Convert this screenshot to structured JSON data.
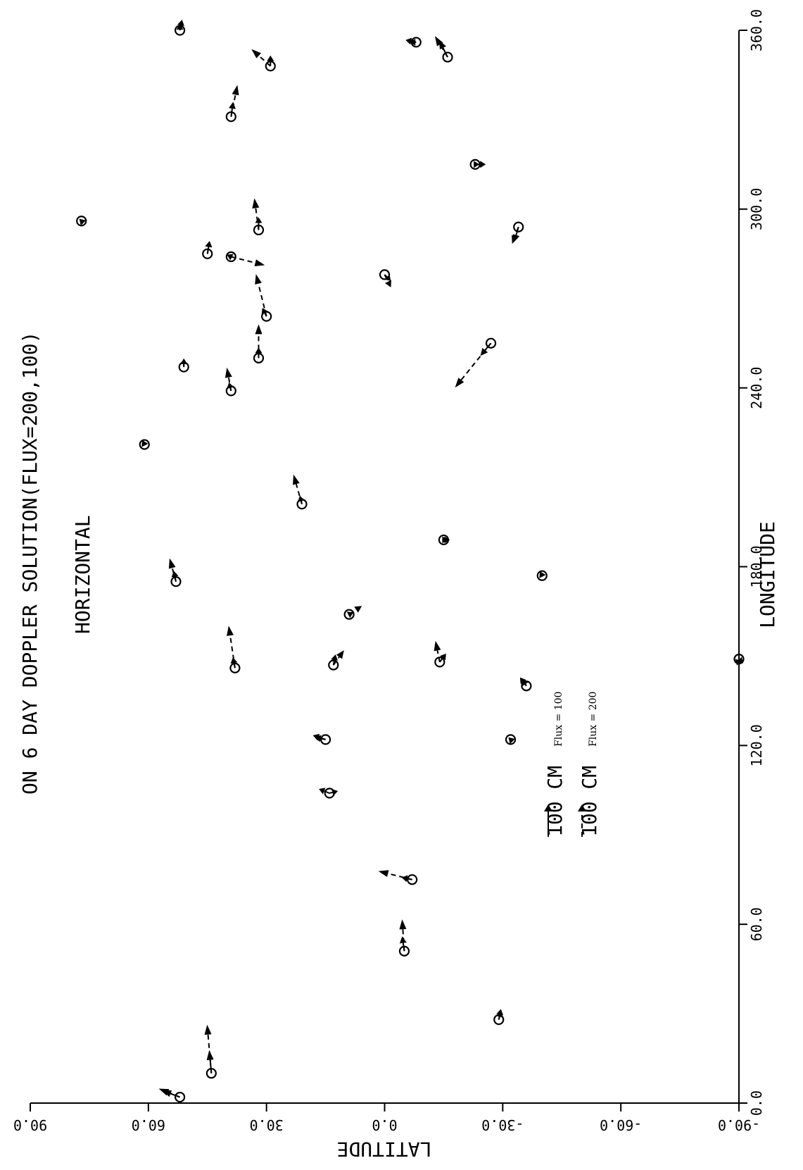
{
  "chart_data": {
    "type": "scatter",
    "title": "ON 6 DAY DOPPLER SOLUTION(FLUX=200,100)",
    "subtitle": "HORIZONTAL",
    "xlabel": "LONGITUDE",
    "ylabel": "LATITUDE",
    "xlim": [
      0,
      360
    ],
    "ylim": [
      -90,
      90
    ],
    "x_ticks": [
      "0.0",
      "60.0",
      "120.0",
      "180.0",
      "240.0",
      "300.0",
      "360.0"
    ],
    "y_ticks": [
      "-90.0",
      "-60.0",
      "-30.0",
      "0.0",
      "30.0",
      "60.0",
      "90.0"
    ],
    "legend": [
      {
        "text": "100 CM",
        "subtext": "Flux = 100",
        "style": "solid"
      },
      {
        "text": "100 CM",
        "subtext": "Flux = 200",
        "style": "dashed"
      }
    ],
    "stations": [
      {
        "lon": 2,
        "lat": 52,
        "v100": [
          8,
          3
        ],
        "v200": [
          10,
          4
        ]
      },
      {
        "lon": 10,
        "lat": 44,
        "v100": [
          1,
          11
        ],
        "v200": [
          2,
          23
        ]
      },
      {
        "lon": 28,
        "lat": -29,
        "v100": [
          -1,
          4
        ],
        "v200": [
          -1,
          5
        ]
      },
      {
        "lon": 51,
        "lat": -5,
        "v100": [
          1,
          7
        ],
        "v200": [
          1,
          15
        ]
      },
      {
        "lon": 75,
        "lat": -7,
        "v100": [
          5,
          1
        ],
        "v200": [
          16,
          4
        ]
      },
      {
        "lon": 104,
        "lat": 14,
        "v100": [
          5,
          2
        ],
        "v200": [
          -4,
          1
        ]
      },
      {
        "lon": 122,
        "lat": 15,
        "v100": [
          5,
          1
        ],
        "v200": [
          6,
          2
        ]
      },
      {
        "lon": 122,
        "lat": -32,
        "v100": [
          1,
          1
        ],
        "v200": [
          1,
          1
        ]
      },
      {
        "lon": 140,
        "lat": -36,
        "v100": [
          2,
          3
        ],
        "v200": [
          3,
          4
        ]
      },
      {
        "lon": 146,
        "lat": 38,
        "v100": [
          1,
          5
        ],
        "v200": [
          3,
          20
        ]
      },
      {
        "lon": 147,
        "lat": 13,
        "v100": [
          -1,
          5
        ],
        "v200": [
          -5,
          7
        ]
      },
      {
        "lon": 148,
        "lat": -14,
        "v100": [
          -3,
          4
        ],
        "v200": [
          2,
          10
        ]
      },
      {
        "lon": 149,
        "lat": -90,
        "v100": [
          -2,
          -2
        ],
        "v200": [
          1,
          -3
        ]
      },
      {
        "lon": 164,
        "lat": 9,
        "v100": [
          -2,
          1
        ],
        "v200": [
          -6,
          4
        ]
      },
      {
        "lon": 175,
        "lat": 53,
        "v100": [
          1,
          5
        ],
        "v200": [
          3,
          11
        ]
      },
      {
        "lon": 177,
        "lat": -40,
        "v100": [
          1,
          2
        ],
        "v200": [
          1,
          2
        ]
      },
      {
        "lon": 189,
        "lat": -15,
        "v100": [
          -2,
          0
        ],
        "v200": [
          -3,
          0
        ]
      },
      {
        "lon": 201,
        "lat": 21,
        "v100": [
          1,
          4
        ],
        "v200": [
          4,
          14
        ]
      },
      {
        "lon": 221,
        "lat": 61,
        "v100": [
          1,
          2
        ],
        "v200": [
          1,
          2
        ]
      },
      {
        "lon": 239,
        "lat": 39,
        "v100": [
          1,
          4
        ],
        "v200": [
          2,
          11
        ]
      },
      {
        "lon": 247,
        "lat": 51,
        "v100": [
          0,
          4
        ],
        "v200": [
          0,
          4
        ]
      },
      {
        "lon": 250,
        "lat": 32,
        "v100": [
          0,
          5
        ],
        "v200": [
          0,
          16
        ]
      },
      {
        "lon": 255,
        "lat": -27,
        "v100": [
          5,
          -6
        ],
        "v200": [
          17,
          -21
        ]
      },
      {
        "lon": 264,
        "lat": 30,
        "v100": [
          2,
          4
        ],
        "v200": [
          5,
          20
        ]
      },
      {
        "lon": 278,
        "lat": 0,
        "v100": [
          -3,
          -3
        ],
        "v200": [
          -3,
          -6
        ]
      },
      {
        "lon": 284,
        "lat": 39,
        "v100": [
          2,
          1
        ],
        "v200": [
          -16,
          -4
        ]
      },
      {
        "lon": 285,
        "lat": 45,
        "v100": [
          -1,
          6
        ],
        "v200": [
          -1,
          6
        ]
      },
      {
        "lon": 293,
        "lat": 32,
        "v100": [
          0,
          6
        ],
        "v200": [
          2,
          15
        ]
      },
      {
        "lon": 294,
        "lat": -34,
        "v100": [
          2,
          -7
        ],
        "v200": [
          3,
          -8
        ]
      },
      {
        "lon": 296,
        "lat": 77,
        "v100": [
          1,
          1
        ],
        "v200": [
          1,
          1
        ]
      },
      {
        "lon": 315,
        "lat": -23,
        "v100": [
          -2,
          0
        ],
        "v200": [
          -5,
          0
        ]
      },
      {
        "lon": 331,
        "lat": 39,
        "v100": [
          -1,
          7
        ],
        "v200": [
          -3,
          15
        ]
      },
      {
        "lon": 348,
        "lat": 29,
        "v100": [
          0,
          5
        ],
        "v200": [
          9,
          8
        ]
      },
      {
        "lon": 356,
        "lat": -8,
        "v100": [
          3,
          0
        ],
        "v200": [
          5,
          1
        ]
      },
      {
        "lon": 351,
        "lat": -16,
        "v100": [
          4,
          8
        ],
        "v200": [
          6,
          10
        ]
      },
      {
        "lon": 368,
        "lat": 52,
        "v100": [
          0,
          3
        ],
        "v200": [
          -1,
          5
        ]
      }
    ]
  }
}
